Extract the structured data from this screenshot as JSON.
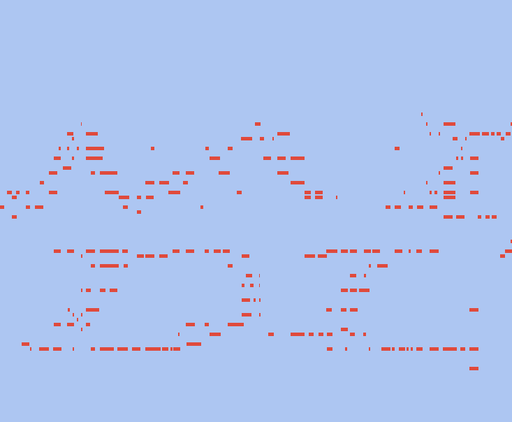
{
  "background_color": "#adc6f2",
  "mark_color": "#e04a3c"
}
